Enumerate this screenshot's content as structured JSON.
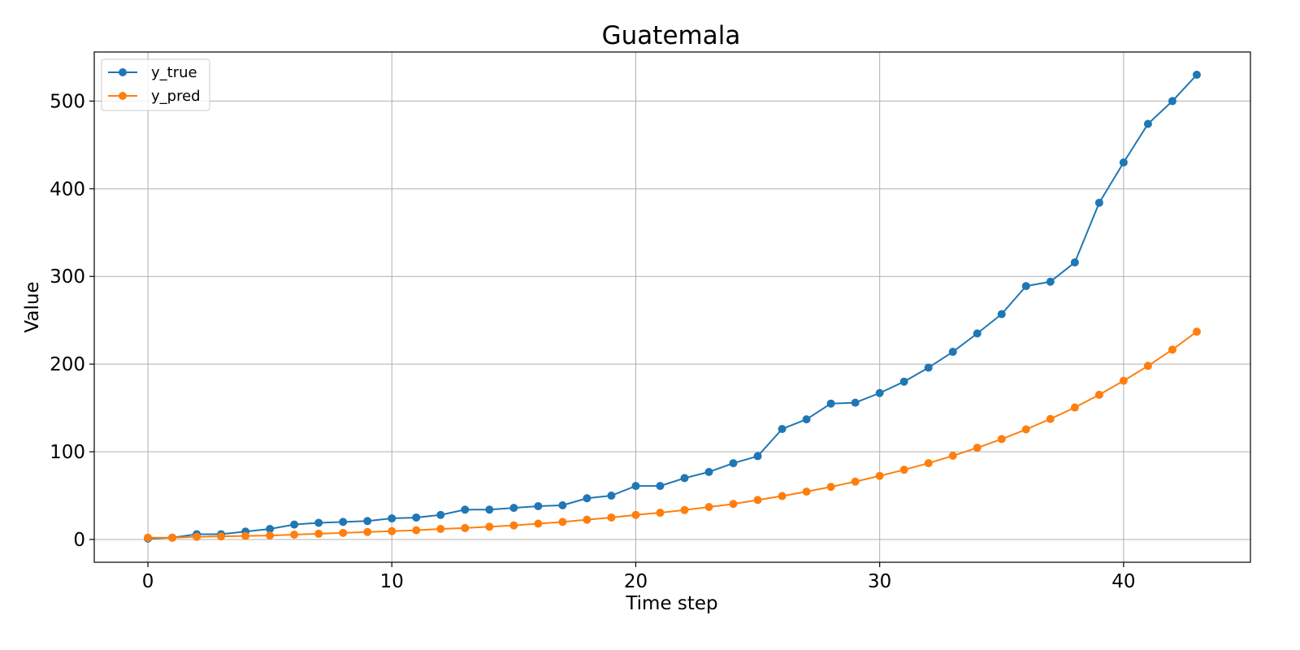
{
  "chart_data": {
    "type": "line",
    "title": "Guatemala",
    "xlabel": "Time step",
    "ylabel": "Value",
    "xlim": [
      -2.2,
      45.2
    ],
    "ylim": [
      -26,
      556
    ],
    "xticks": [
      0,
      10,
      20,
      30,
      40
    ],
    "yticks": [
      0,
      100,
      200,
      300,
      400,
      500
    ],
    "grid": true,
    "legend_position": "top-left",
    "x": [
      0,
      1,
      2,
      3,
      4,
      5,
      6,
      7,
      8,
      9,
      10,
      11,
      12,
      13,
      14,
      15,
      16,
      17,
      18,
      19,
      20,
      21,
      22,
      23,
      24,
      25,
      26,
      27,
      28,
      29,
      30,
      31,
      32,
      33,
      34,
      35,
      36,
      37,
      38,
      39,
      40,
      41,
      42,
      43
    ],
    "series": [
      {
        "name": "y_true",
        "color": "#1f77b4",
        "values": [
          1,
          2,
          6,
          6,
          9,
          12,
          17,
          19,
          20,
          21,
          24,
          25,
          28,
          34,
          34,
          36,
          38,
          39,
          47,
          50,
          61,
          61,
          70,
          77,
          87,
          95,
          126,
          137,
          155,
          156,
          167,
          180,
          196,
          214,
          235,
          257,
          289,
          294,
          316,
          384,
          430,
          474,
          500,
          530
        ]
      },
      {
        "name": "y_pred",
        "color": "#ff7f0e",
        "values": [
          2,
          2,
          3,
          3.5,
          4,
          4.5,
          5.5,
          6.5,
          7.5,
          8.5,
          9.5,
          10.5,
          12,
          13,
          14.5,
          16,
          18,
          20,
          22.5,
          25,
          28,
          30.5,
          33.5,
          37,
          40.5,
          45,
          49.5,
          54.5,
          60,
          66,
          72.5,
          79.5,
          87,
          95.5,
          104.5,
          114.5,
          125.5,
          137.5,
          150.5,
          165,
          181,
          198,
          216.5,
          237
        ]
      }
    ]
  }
}
